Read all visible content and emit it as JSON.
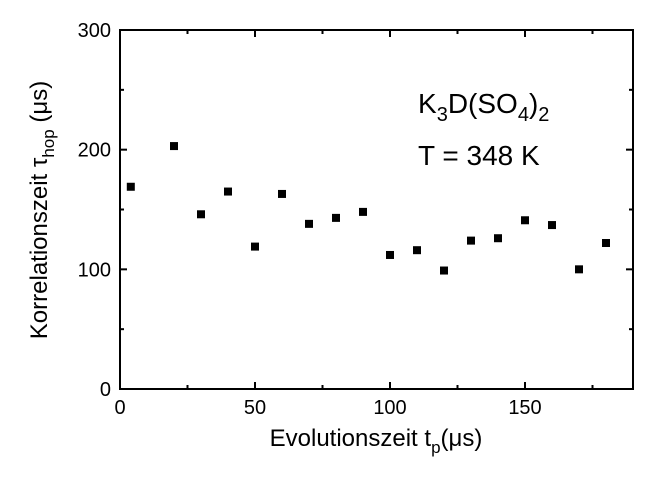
{
  "chart_data": {
    "type": "scatter",
    "xlim": [
      0,
      190
    ],
    "ylim": [
      0,
      300
    ],
    "x_ticks": [
      0,
      50,
      100,
      150
    ],
    "y_ticks": [
      0,
      100,
      200,
      300
    ],
    "x_tick_labels": [
      "0",
      "50",
      "100",
      "150"
    ],
    "y_tick_labels": [
      "0",
      "100",
      "200",
      "300"
    ],
    "xlabel": {
      "main": "Evolutionszeit t",
      "sub": "p",
      "rest": "(μs)"
    },
    "ylabel": {
      "main": "Korrelationszeit τ",
      "sub": "hop",
      "rest": " (μs)"
    },
    "annotation": {
      "formula": {
        "k": "K",
        "k_sub": "3",
        "mid": "D(SO",
        "o_sub": "4",
        "close": ")",
        "end_sub": "2"
      },
      "temperature": "T = 348 K"
    },
    "grid": false,
    "marker": "square",
    "marker_color": "#000000",
    "series": [
      {
        "x": [
          4,
          20,
          30,
          40,
          50,
          60,
          70,
          80,
          90,
          100,
          110,
          120,
          130,
          140,
          150,
          160,
          170,
          180
        ],
        "y": [
          169,
          203,
          146,
          165,
          119,
          163,
          138,
          143,
          148,
          112,
          116,
          99,
          124,
          126,
          141,
          137,
          100,
          122
        ]
      }
    ]
  }
}
